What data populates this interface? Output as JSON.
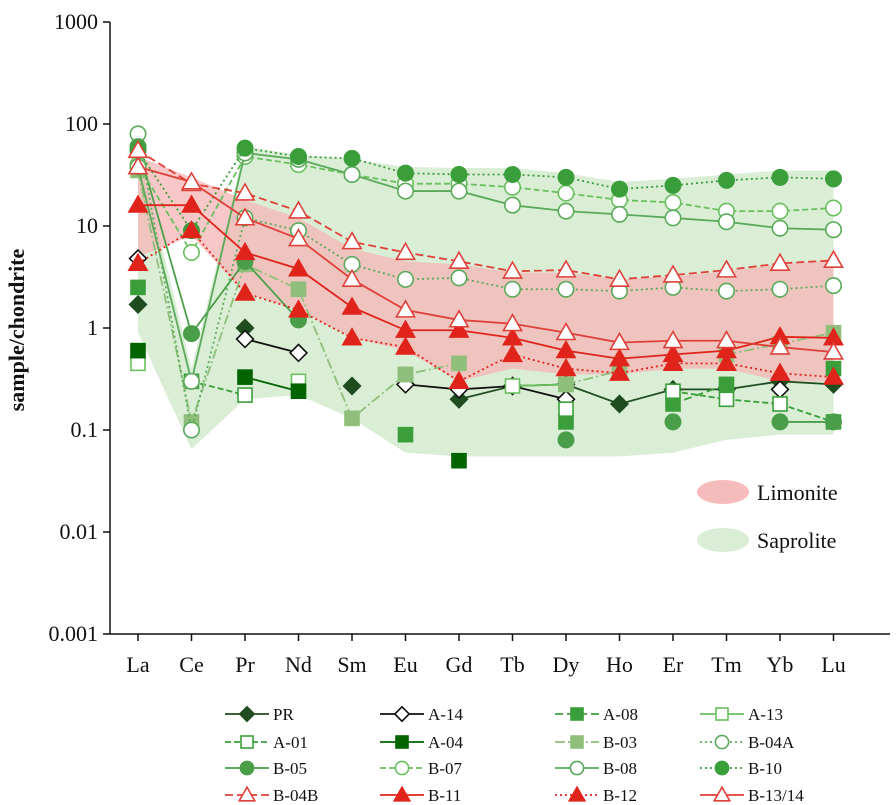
{
  "chart_data": {
    "type": "line",
    "title": "",
    "xlabel": "",
    "ylabel": "sample/chondrite",
    "yscale": "log",
    "ylim": [
      0.001,
      1000
    ],
    "y_ticks": [
      "0.001",
      "0.01",
      "0.1",
      "1",
      "10",
      "100",
      "1000"
    ],
    "categories": [
      "La",
      "Ce",
      "Pr",
      "Nd",
      "Sm",
      "Eu",
      "Gd",
      "Tb",
      "Dy",
      "Ho",
      "Er",
      "Tm",
      "Yb",
      "Lu"
    ],
    "bands": [
      {
        "name": "Saprolite",
        "color": "#d6ecd2",
        "upper": [
          60,
          0.4,
          60,
          50,
          45,
          38,
          37,
          37,
          33,
          27,
          29,
          32,
          35,
          35
        ],
        "lower": [
          0.9,
          0.065,
          0.2,
          0.22,
          0.13,
          0.06,
          0.055,
          0.055,
          0.055,
          0.055,
          0.06,
          0.08,
          0.09,
          0.09
        ]
      },
      {
        "name": "Limonite",
        "color": "#f5b5b5",
        "upper": [
          48,
          30,
          18,
          12,
          6,
          4.5,
          4.2,
          3.5,
          3.5,
          3.0,
          3.2,
          3.6,
          4.2,
          4.6
        ],
        "lower": [
          5,
          8,
          2.2,
          1.5,
          0.8,
          0.6,
          0.3,
          0.4,
          0.35,
          0.35,
          0.4,
          0.4,
          0.3,
          0.3
        ]
      }
    ],
    "series": [
      {
        "name": "PR",
        "color": "#1f4d1f",
        "marker": "diamond",
        "fill": true,
        "dash": "",
        "values": [
          1.7,
          null,
          1.0,
          null,
          0.27,
          null,
          0.2,
          0.27,
          0.28,
          0.18,
          0.25,
          0.25,
          0.3,
          0.28
        ]
      },
      {
        "name": "A-14",
        "color": "#111111",
        "marker": "diamond",
        "fill": false,
        "dash": "",
        "values": [
          4.8,
          null,
          0.78,
          0.57,
          null,
          0.28,
          0.25,
          0.27,
          0.2,
          null,
          null,
          null,
          0.25,
          null
        ]
      },
      {
        "name": "A-08",
        "color": "#3a9e3a",
        "marker": "square",
        "fill": true,
        "dash": "8,4",
        "values": [
          2.5,
          null,
          null,
          null,
          null,
          0.09,
          null,
          null,
          0.12,
          null,
          0.18,
          0.28,
          null,
          0.4
        ]
      },
      {
        "name": "A-13",
        "color": "#6abf5e",
        "marker": "square",
        "fill": false,
        "dash": "",
        "values": [
          0.45,
          null,
          null,
          0.3,
          null,
          0.35,
          null,
          0.27,
          0.28,
          null,
          null,
          null,
          null,
          null
        ]
      },
      {
        "name": "A-01",
        "color": "#3a9e3a",
        "marker": "square",
        "fill": false,
        "dash": "6,3",
        "values": [
          null,
          0.3,
          0.22,
          null,
          null,
          null,
          null,
          null,
          0.16,
          null,
          0.24,
          0.2,
          0.18,
          0.12
        ]
      },
      {
        "name": "A-04",
        "color": "#006400",
        "marker": "square",
        "fill": true,
        "dash": "",
        "values": [
          0.6,
          null,
          0.33,
          0.24,
          null,
          null,
          0.05,
          null,
          null,
          null,
          null,
          null,
          null,
          null
        ]
      },
      {
        "name": "B-03",
        "color": "#8fbf7a",
        "marker": "square",
        "fill": true,
        "dash": "10,3,2,3",
        "values": [
          35,
          0.12,
          4.2,
          2.4,
          0.13,
          0.35,
          0.45,
          null,
          0.28,
          0.38,
          null,
          0.55,
          0.7,
          0.9
        ]
      },
      {
        "name": "B-04A",
        "color": "#5aaa5a",
        "marker": "circle",
        "fill": false,
        "dash": "2,3",
        "values": [
          80,
          0.1,
          12,
          9,
          4.2,
          3.0,
          3.1,
          2.4,
          2.4,
          2.3,
          2.5,
          2.3,
          2.4,
          2.6
        ]
      },
      {
        "name": "B-05",
        "color": "#4a9e4a",
        "marker": "circle",
        "fill": true,
        "dash": "",
        "values": [
          60,
          0.88,
          4.5,
          1.2,
          null,
          null,
          null,
          null,
          0.08,
          null,
          0.12,
          null,
          0.12,
          0.12
        ]
      },
      {
        "name": "B-07",
        "color": "#6abf5e",
        "marker": "circle",
        "fill": false,
        "dash": "6,3",
        "values": [
          40,
          5.5,
          48,
          40,
          32,
          26,
          26,
          24,
          21,
          18,
          17,
          14,
          14,
          15
        ]
      },
      {
        "name": "B-08",
        "color": "#5aaa5a",
        "marker": "circle",
        "fill": false,
        "dash": "",
        "values": [
          38,
          0.3,
          52,
          45,
          32,
          22,
          22,
          16,
          14,
          13,
          12,
          11,
          9.5,
          9.2
        ]
      },
      {
        "name": "B-10",
        "color": "#3a9e3a",
        "marker": "circle",
        "fill": true,
        "dash": "2,3",
        "values": [
          55,
          9,
          58,
          48,
          46,
          33,
          32,
          32,
          30,
          23,
          25,
          28,
          30,
          29
        ]
      },
      {
        "name": "B-04B",
        "color": "#e0403a",
        "marker": "triangle",
        "fill": false,
        "dash": "8,4",
        "values": [
          55,
          26,
          21,
          14,
          7.0,
          5.5,
          4.5,
          3.6,
          3.7,
          3.0,
          3.3,
          3.7,
          4.3,
          4.6
        ]
      },
      {
        "name": "B-11",
        "color": "#e0241c",
        "marker": "triangle",
        "fill": true,
        "dash": "",
        "values": [
          16,
          16,
          5.5,
          3.8,
          1.6,
          0.95,
          0.95,
          0.8,
          0.6,
          0.5,
          0.55,
          0.6,
          0.82,
          0.8
        ]
      },
      {
        "name": "B-12",
        "color": "#e0241c",
        "marker": "triangle",
        "fill": true,
        "dash": "2,3",
        "values": [
          4.3,
          9,
          2.2,
          1.5,
          0.8,
          0.65,
          0.3,
          0.55,
          0.4,
          0.36,
          0.45,
          0.45,
          0.36,
          0.33
        ]
      },
      {
        "name": "B-13/14",
        "color": "#e0403a",
        "marker": "triangle",
        "fill": false,
        "dash": "",
        "values": [
          38,
          27,
          12,
          7.5,
          3.0,
          1.5,
          1.2,
          1.1,
          0.9,
          0.72,
          0.75,
          0.75,
          0.65,
          0.58
        ]
      }
    ]
  }
}
